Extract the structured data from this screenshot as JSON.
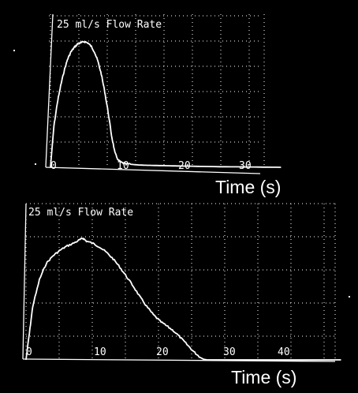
{
  "chart_data": [
    {
      "type": "line",
      "title": "25 ml/s Flow Rate",
      "xlabel": "Time (s)",
      "ylabel": "",
      "x_ticks": [
        "0",
        "10",
        "20",
        "30"
      ],
      "xlim": [
        0,
        35
      ],
      "ylim": [
        0,
        25
      ],
      "grid": true,
      "series": [
        {
          "x": [
            0,
            0.5,
            1,
            1.5,
            2,
            2.5,
            3,
            3.5,
            4,
            4.5,
            5,
            5.5,
            6,
            6.5,
            7,
            7.5,
            8,
            8.5,
            9,
            9.5,
            10,
            10.5,
            11,
            12,
            13,
            14,
            16,
            18,
            20,
            25,
            30,
            34
          ],
          "y": [
            0,
            7,
            11,
            14,
            16.5,
            18.5,
            19.8,
            20.6,
            21.2,
            21.4,
            21.6,
            21.4,
            20.8,
            19.8,
            18.2,
            16,
            13,
            9.5,
            5.5,
            2.5,
            1.2,
            0.8,
            0.6,
            0.5,
            0.4,
            0.35,
            0.3,
            0.25,
            0.2,
            0.1,
            0.05,
            0
          ]
        }
      ]
    },
    {
      "type": "line",
      "title": "25 ml/s Flow Rate",
      "xlabel": "Time (s)",
      "ylabel": "",
      "x_ticks": [
        "0",
        "10",
        "20",
        "30",
        "40"
      ],
      "xlim": [
        0,
        48
      ],
      "ylim": [
        0,
        25
      ],
      "grid": true,
      "series": [
        {
          "x": [
            0,
            0.5,
            1,
            2,
            3,
            4,
            5,
            6,
            7,
            8,
            8.5,
            9,
            10,
            11,
            12,
            13,
            14,
            15,
            16,
            17,
            18,
            19,
            20,
            21,
            22,
            23,
            24,
            25,
            26,
            26.5,
            27,
            28,
            30,
            35,
            40,
            47
          ],
          "y": [
            0,
            4.5,
            9,
            13.5,
            16.2,
            17.5,
            18.4,
            19.1,
            19.6,
            20.2,
            20.5,
            20,
            19.6,
            19,
            18.1,
            17,
            15.6,
            14,
            12.4,
            10.6,
            9,
            7.6,
            6.5,
            5.7,
            4.9,
            3.8,
            2.6,
            1.4,
            0.4,
            0.1,
            0,
            0,
            0,
            0,
            0,
            0
          ]
        }
      ]
    }
  ]
}
